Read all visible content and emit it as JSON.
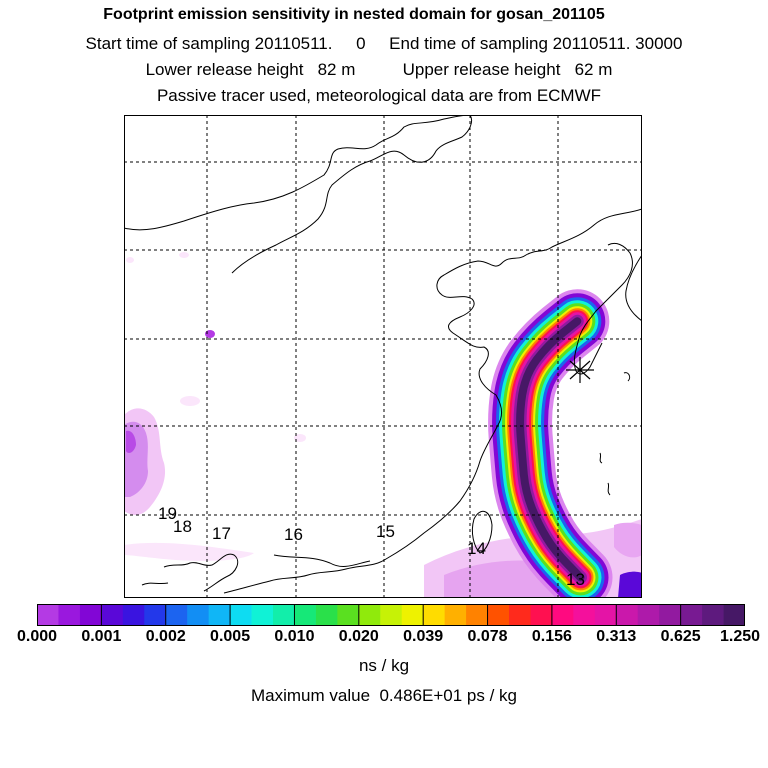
{
  "header": {
    "title": "Footprint emission sensitivity in nested domain for gosan_201105",
    "line2": "Start time of sampling 20110511.     0     End time of sampling 20110511. 30000",
    "line3": "Lower release height   82 m          Upper release height   62 m",
    "line4": "Passive tracer used, meteorological data are from ECMWF"
  },
  "chart_data": {
    "type": "heatmap",
    "title": "Footprint emission sensitivity in nested domain for gosan_201105",
    "colorbar": {
      "tick_labels": [
        "0.000",
        "0.001",
        "0.002",
        "0.005",
        "0.010",
        "0.020",
        "0.039",
        "0.078",
        "0.156",
        "0.313",
        "0.625",
        "1.250"
      ],
      "units": "ns / kg",
      "colors": [
        "#ffffff",
        "#fbe6fb",
        "#f4c8f6",
        "#e8a6f2",
        "#dc86ee",
        "#c960ea",
        "#b43ae4",
        "#9a18de",
        "#8206d6",
        "#5a08d8",
        "#3a14e0",
        "#2338ea",
        "#1c64f0",
        "#128ef4",
        "#10b6f6",
        "#0edcf2",
        "#10f2d6",
        "#12eeaa",
        "#16e878",
        "#2ae04a",
        "#5ae020",
        "#90ea0c",
        "#c6f206",
        "#eef200",
        "#ffdc00",
        "#ffb000",
        "#ff8200",
        "#ff5200",
        "#ff2a1c",
        "#ff1050",
        "#ff0a80",
        "#f4109c",
        "#e414a6",
        "#ca18ab",
        "#ae1aaa",
        "#921aa0",
        "#781a92",
        "#5e1a7e",
        "#461866"
      ]
    },
    "max_value_text": "Maximum value  0.486E+01 ps / kg",
    "receptor_labels": [
      "19",
      "18",
      "17",
      "16",
      "15",
      "14",
      "13"
    ],
    "plume_path": {
      "lon": [
        126.5,
        125.6,
        124.9,
        124.7,
        124.8,
        124.9,
        125.3,
        125.8,
        126.6
      ],
      "lat": [
        33.0,
        32.2,
        31.2,
        29.8,
        28.4,
        27.2,
        26.1,
        25.2,
        24.3
      ]
    }
  }
}
